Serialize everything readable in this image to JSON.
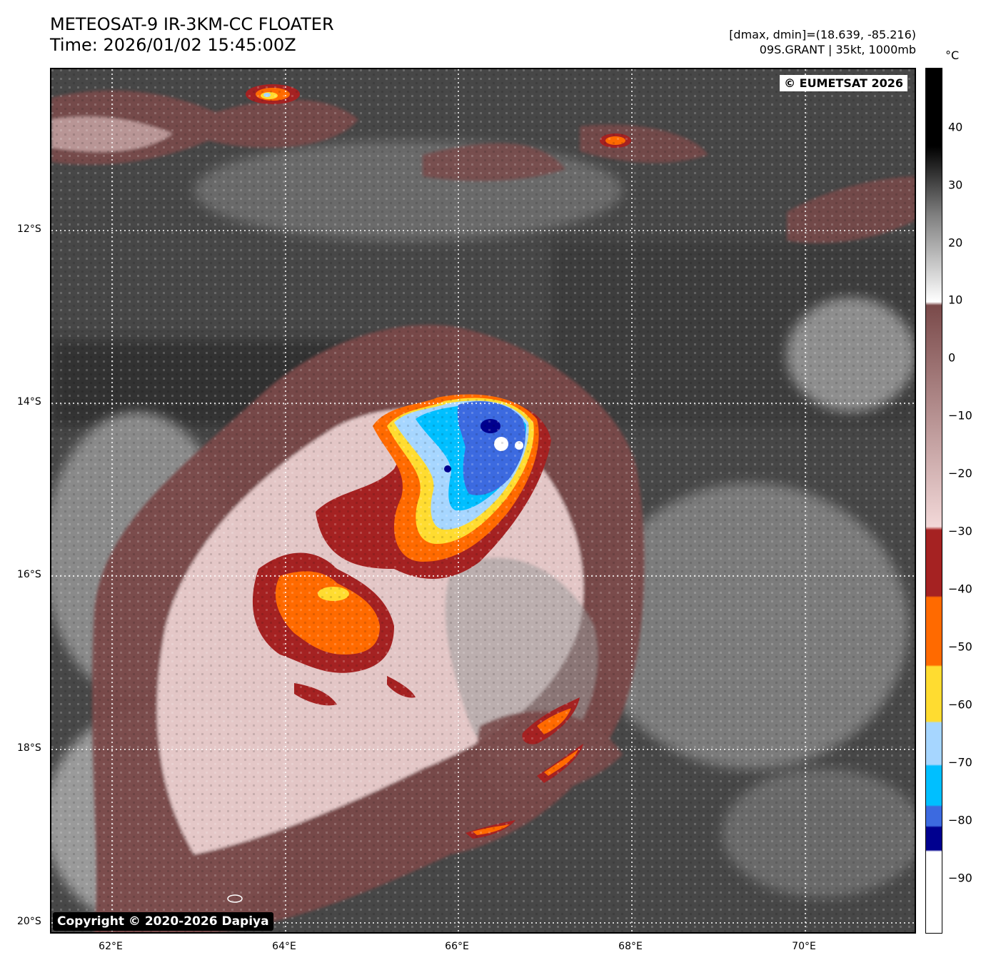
{
  "header": {
    "title": "METEOSAT-9 IR-3KM-CC FLOATER",
    "time": "Time: 2026/01/02 15:45:00Z",
    "dminmax": "[dmax, dmin]=(18.639, -85.216)",
    "storm": "09S.GRANT | 35kt, 1000mb"
  },
  "credits": {
    "eumetsat": "© EUMETSAT 2026",
    "dapiya": "Copyright © 2020-2026 Dapiya"
  },
  "map": {
    "lat_labels": [
      "12°S",
      "14°S",
      "16°S",
      "18°S",
      "20°S"
    ],
    "lon_labels": [
      "62°E",
      "64°E",
      "66°E",
      "68°E",
      "70°E"
    ]
  },
  "colorbar": {
    "unit": "°C",
    "ticks": [
      "40",
      "30",
      "20",
      "10",
      "0",
      "−10",
      "−20",
      "−30",
      "−40",
      "−50",
      "−60",
      "−70",
      "−80",
      "−90"
    ],
    "colors": {
      "black": "#000000",
      "gray": "#808080",
      "white": "#ffffff",
      "brown": "#7a4a4a",
      "pink": "#f2d8d8",
      "dark_red": "#a52222",
      "orange": "#ff6a00",
      "yellow": "#ffdc30",
      "light_blue": "#a6d6ff",
      "cyan": "#00bfff",
      "blue": "#3c6ae0",
      "navy": "#00008f"
    }
  }
}
